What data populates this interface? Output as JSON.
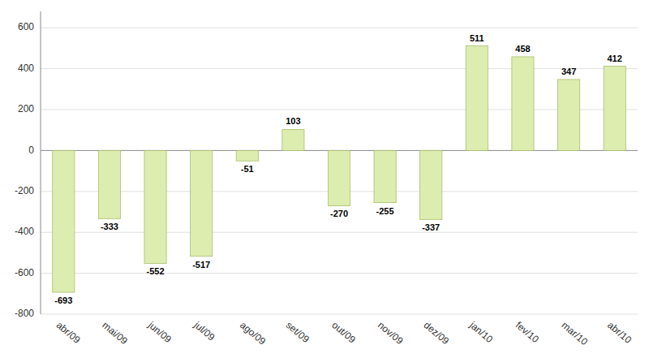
{
  "chart_data": {
    "type": "bar",
    "categories": [
      "abr/09",
      "mai/09",
      "jun/09",
      "jul/09",
      "ago/09",
      "set/09",
      "out/09",
      "nov/09",
      "dez/09",
      "jan/10",
      "fev/10",
      "mar/10",
      "abr/10"
    ],
    "values": [
      -693,
      -333,
      -552,
      -517,
      -51,
      103,
      -270,
      -255,
      -337,
      511,
      458,
      347,
      412
    ],
    "color": "#ddedb0",
    "ylim": [
      -800,
      680
    ],
    "yticks": [
      -800,
      -600,
      -400,
      -200,
      0,
      200,
      400,
      600
    ],
    "grid": true,
    "data_labels": true
  }
}
